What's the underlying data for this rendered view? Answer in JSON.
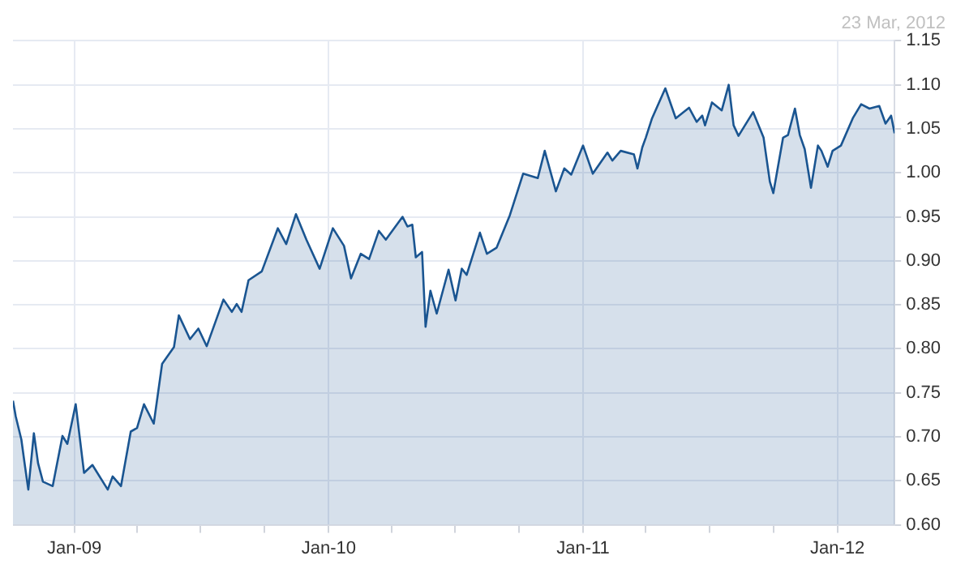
{
  "chart_data": {
    "type": "area",
    "subtitle": "23 Mar, 2012",
    "x": [
      "2008-10-05",
      "2008-10-09",
      "2008-10-17",
      "2008-10-22",
      "2008-10-27",
      "2008-11-04",
      "2008-11-10",
      "2008-11-17",
      "2008-12-01",
      "2008-12-15",
      "2008-12-22",
      "2009-01-03",
      "2009-01-15",
      "2009-01-27",
      "2009-02-18",
      "2009-02-25",
      "2009-03-09",
      "2009-03-23",
      "2009-04-01",
      "2009-04-11",
      "2009-04-25",
      "2009-05-07",
      "2009-05-24",
      "2009-05-31",
      "2009-06-16",
      "2009-06-28",
      "2009-07-10",
      "2009-08-03",
      "2009-08-15",
      "2009-08-22",
      "2009-08-29",
      "2009-09-08",
      "2009-09-27",
      "2009-10-20",
      "2009-11-01",
      "2009-11-15",
      "2009-11-30",
      "2009-12-19",
      "2010-01-07",
      "2010-01-23",
      "2010-02-02",
      "2010-02-16",
      "2010-02-28",
      "2010-03-14",
      "2010-03-24",
      "2010-04-17",
      "2010-04-24",
      "2010-05-01",
      "2010-05-06",
      "2010-05-15",
      "2010-05-20",
      "2010-05-27",
      "2010-06-05",
      "2010-06-22",
      "2010-07-02",
      "2010-07-11",
      "2010-07-18",
      "2010-08-06",
      "2010-08-16",
      "2010-08-30",
      "2010-09-18",
      "2010-10-07",
      "2010-10-28",
      "2010-11-07",
      "2010-11-23",
      "2010-12-05",
      "2010-12-15",
      "2011-01-01",
      "2011-01-15",
      "2011-02-05",
      "2011-02-12",
      "2011-02-24",
      "2011-03-15",
      "2011-03-20",
      "2011-03-27",
      "2011-04-01",
      "2011-04-10",
      "2011-04-29",
      "2011-05-14",
      "2011-06-02",
      "2011-06-13",
      "2011-06-21",
      "2011-06-25",
      "2011-07-05",
      "2011-07-19",
      "2011-07-29",
      "2011-08-05",
      "2011-08-12",
      "2011-09-02",
      "2011-09-17",
      "2011-09-26",
      "2011-10-01",
      "2011-10-15",
      "2011-10-22",
      "2011-11-01",
      "2011-11-08",
      "2011-11-15",
      "2011-11-24",
      "2011-12-04",
      "2011-12-09",
      "2011-12-18",
      "2011-12-25",
      "2012-01-06",
      "2012-01-23",
      "2012-02-04",
      "2012-02-16",
      "2012-03-01",
      "2012-03-10",
      "2012-03-18",
      "2012-03-23"
    ],
    "series": [
      {
        "color": "#1a5591",
        "values": [
          0.741,
          0.723,
          0.697,
          0.668,
          0.64,
          0.704,
          0.67,
          0.649,
          0.644,
          0.701,
          0.692,
          0.737,
          0.659,
          0.668,
          0.64,
          0.655,
          0.644,
          0.706,
          0.71,
          0.737,
          0.715,
          0.783,
          0.802,
          0.838,
          0.811,
          0.823,
          0.803,
          0.856,
          0.842,
          0.851,
          0.842,
          0.878,
          0.888,
          0.937,
          0.919,
          0.953,
          0.924,
          0.891,
          0.937,
          0.917,
          0.88,
          0.908,
          0.902,
          0.934,
          0.924,
          0.95,
          0.939,
          0.941,
          0.904,
          0.91,
          0.825,
          0.866,
          0.84,
          0.89,
          0.855,
          0.891,
          0.884,
          0.932,
          0.908,
          0.915,
          0.952,
          0.999,
          0.994,
          1.025,
          0.979,
          1.005,
          0.998,
          1.031,
          0.999,
          1.023,
          1.014,
          1.025,
          1.021,
          1.005,
          1.029,
          1.04,
          1.062,
          1.096,
          1.062,
          1.074,
          1.058,
          1.065,
          1.054,
          1.08,
          1.071,
          1.1,
          1.054,
          1.042,
          1.069,
          1.04,
          0.99,
          0.977,
          1.04,
          1.043,
          1.073,
          1.043,
          1.027,
          0.983,
          1.031,
          1.025,
          1.007,
          1.025,
          1.031,
          1.062,
          1.078,
          1.073,
          1.076,
          1.056,
          1.065,
          1.045
        ]
      }
    ],
    "xlim": [
      "2008-10-05",
      "2012-03-23"
    ],
    "xticks": [
      {
        "value": "2009-01-01",
        "label": "Jan-09"
      },
      {
        "value": "2009-04-01",
        "label": null
      },
      {
        "value": "2009-07-01",
        "label": null
      },
      {
        "value": "2009-10-01",
        "label": null
      },
      {
        "value": "2010-01-01",
        "label": "Jan-10"
      },
      {
        "value": "2010-04-01",
        "label": null
      },
      {
        "value": "2010-07-01",
        "label": null
      },
      {
        "value": "2010-10-01",
        "label": null
      },
      {
        "value": "2011-01-01",
        "label": "Jan-11"
      },
      {
        "value": "2011-04-01",
        "label": null
      },
      {
        "value": "2011-07-01",
        "label": null
      },
      {
        "value": "2011-10-01",
        "label": null
      },
      {
        "value": "2012-01-01",
        "label": "Jan-12"
      }
    ],
    "ylim": [
      0.6,
      1.15
    ],
    "yticks": [
      {
        "value": 0.6,
        "label": "0.60"
      },
      {
        "value": 0.65,
        "label": "0.65"
      },
      {
        "value": 0.7,
        "label": "0.70"
      },
      {
        "value": 0.75,
        "label": "0.75"
      },
      {
        "value": 0.8,
        "label": "0.80"
      },
      {
        "value": 0.85,
        "label": "0.85"
      },
      {
        "value": 0.9,
        "label": "0.90"
      },
      {
        "value": 0.95,
        "label": "0.95"
      },
      {
        "value": 1.0,
        "label": "1.00"
      },
      {
        "value": 1.05,
        "label": "1.05"
      },
      {
        "value": 1.1,
        "label": "1.10"
      },
      {
        "value": 1.15,
        "label": "1.15"
      }
    ],
    "grid": true,
    "legend": false,
    "marker": "none",
    "line_style": "solid"
  }
}
